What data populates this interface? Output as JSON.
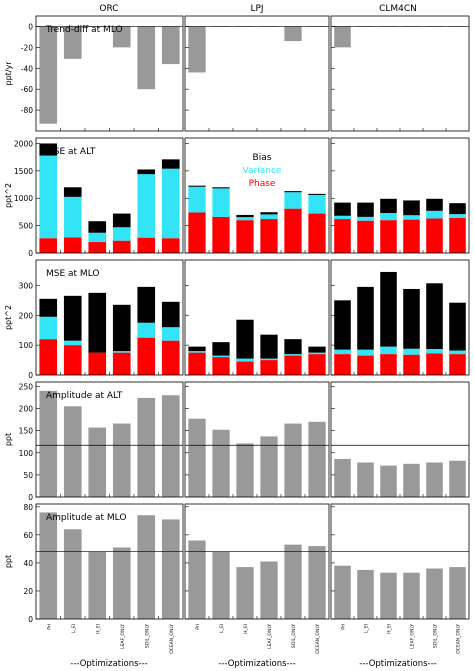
{
  "categories": [
    "Pri",
    "L_EI",
    "H_EI",
    "LEAF_ONLY",
    "SOIL_ONLY",
    "OCEAN_ONLY"
  ],
  "columns": [
    "ORC",
    "LPJ",
    "CLM4CN"
  ],
  "optim_label": "---Optimizations---",
  "colors": {
    "gray": "#999999",
    "black": "#000000",
    "cyan": "#33e4f7",
    "red": "#ff0000"
  },
  "legend": {
    "bias": "Bias",
    "variance": "Variance",
    "phase": "Phase"
  },
  "chart_data": [
    {
      "id": "trend",
      "type": "bar",
      "title": "Trend-diff at MLO",
      "ylabel": "ppt/yr",
      "ylim": [
        -100,
        10
      ],
      "yticks": [
        -80,
        -60,
        -40,
        -20,
        0
      ],
      "zero_line": true,
      "series": [
        {
          "values": [
            -93,
            -31,
            0,
            -20,
            -60,
            -36
          ]
        },
        {
          "values": [
            -44,
            0,
            0,
            0,
            -14,
            0
          ]
        },
        {
          "values": [
            -20,
            0,
            0,
            0,
            0,
            0
          ]
        }
      ]
    },
    {
      "id": "mse_alt",
      "type": "stacked-bar",
      "title": "MSE at ALT",
      "ylabel": "ppt^2",
      "ylim": [
        0,
        2100
      ],
      "yticks": [
        0,
        500,
        1000,
        1500,
        2000
      ],
      "show_legend": true,
      "series": [
        {
          "phase": [
            270,
            285,
            200,
            225,
            280,
            270
          ],
          "variance": [
            1510,
            740,
            170,
            245,
            1160,
            1270
          ],
          "bias": [
            220,
            175,
            210,
            250,
            85,
            170
          ]
        },
        {
          "phase": [
            740,
            660,
            600,
            620,
            810,
            720
          ],
          "variance": [
            470,
            520,
            55,
            85,
            300,
            340
          ],
          "bias": [
            20,
            20,
            40,
            40,
            20,
            20
          ]
        },
        {
          "phase": [
            620,
            590,
            600,
            610,
            630,
            640
          ],
          "variance": [
            60,
            70,
            130,
            80,
            140,
            70
          ],
          "bias": [
            240,
            260,
            260,
            270,
            220,
            200
          ]
        }
      ]
    },
    {
      "id": "mse_mlo",
      "type": "stacked-bar",
      "title": "MSE at MLO",
      "ylabel": "ppt^2",
      "ylim": [
        0,
        385
      ],
      "yticks": [
        0,
        100,
        200,
        300
      ],
      "series": [
        {
          "phase": [
            120,
            100,
            75,
            75,
            125,
            115
          ],
          "variance": [
            75,
            15,
            0,
            5,
            50,
            45
          ],
          "bias": [
            60,
            150,
            200,
            155,
            120,
            85
          ]
        },
        {
          "phase": [
            75,
            60,
            45,
            50,
            65,
            70
          ],
          "variance": [
            5,
            5,
            10,
            5,
            5,
            5
          ],
          "bias": [
            15,
            45,
            130,
            80,
            50,
            20
          ]
        },
        {
          "phase": [
            70,
            65,
            70,
            68,
            72,
            70
          ],
          "variance": [
            15,
            20,
            25,
            20,
            15,
            12
          ],
          "bias": [
            165,
            210,
            250,
            200,
            220,
            160
          ]
        }
      ]
    },
    {
      "id": "amp_alt",
      "type": "bar",
      "title": "Amplitude at ALT",
      "ylabel": "ppt",
      "ylim": [
        0,
        260
      ],
      "yticks": [
        0,
        50,
        100,
        150,
        200,
        250
      ],
      "ref_line": 117,
      "series": [
        {
          "values": [
            240,
            205,
            157,
            166,
            224,
            230
          ]
        },
        {
          "values": [
            177,
            152,
            121,
            137,
            166,
            170
          ]
        },
        {
          "values": [
            86,
            78,
            71,
            75,
            78,
            82
          ]
        }
      ]
    },
    {
      "id": "amp_mlo",
      "type": "bar",
      "title": "Amplitude at MLO",
      "ylabel": "ppt",
      "ylim": [
        0,
        82
      ],
      "yticks": [
        0,
        20,
        40,
        60,
        80
      ],
      "ref_line": 48,
      "series": [
        {
          "values": [
            76,
            64,
            48,
            51,
            74,
            71
          ]
        },
        {
          "values": [
            56,
            48,
            37,
            41,
            53,
            52
          ]
        },
        {
          "values": [
            38,
            35,
            33,
            33,
            36,
            37
          ]
        }
      ]
    }
  ]
}
